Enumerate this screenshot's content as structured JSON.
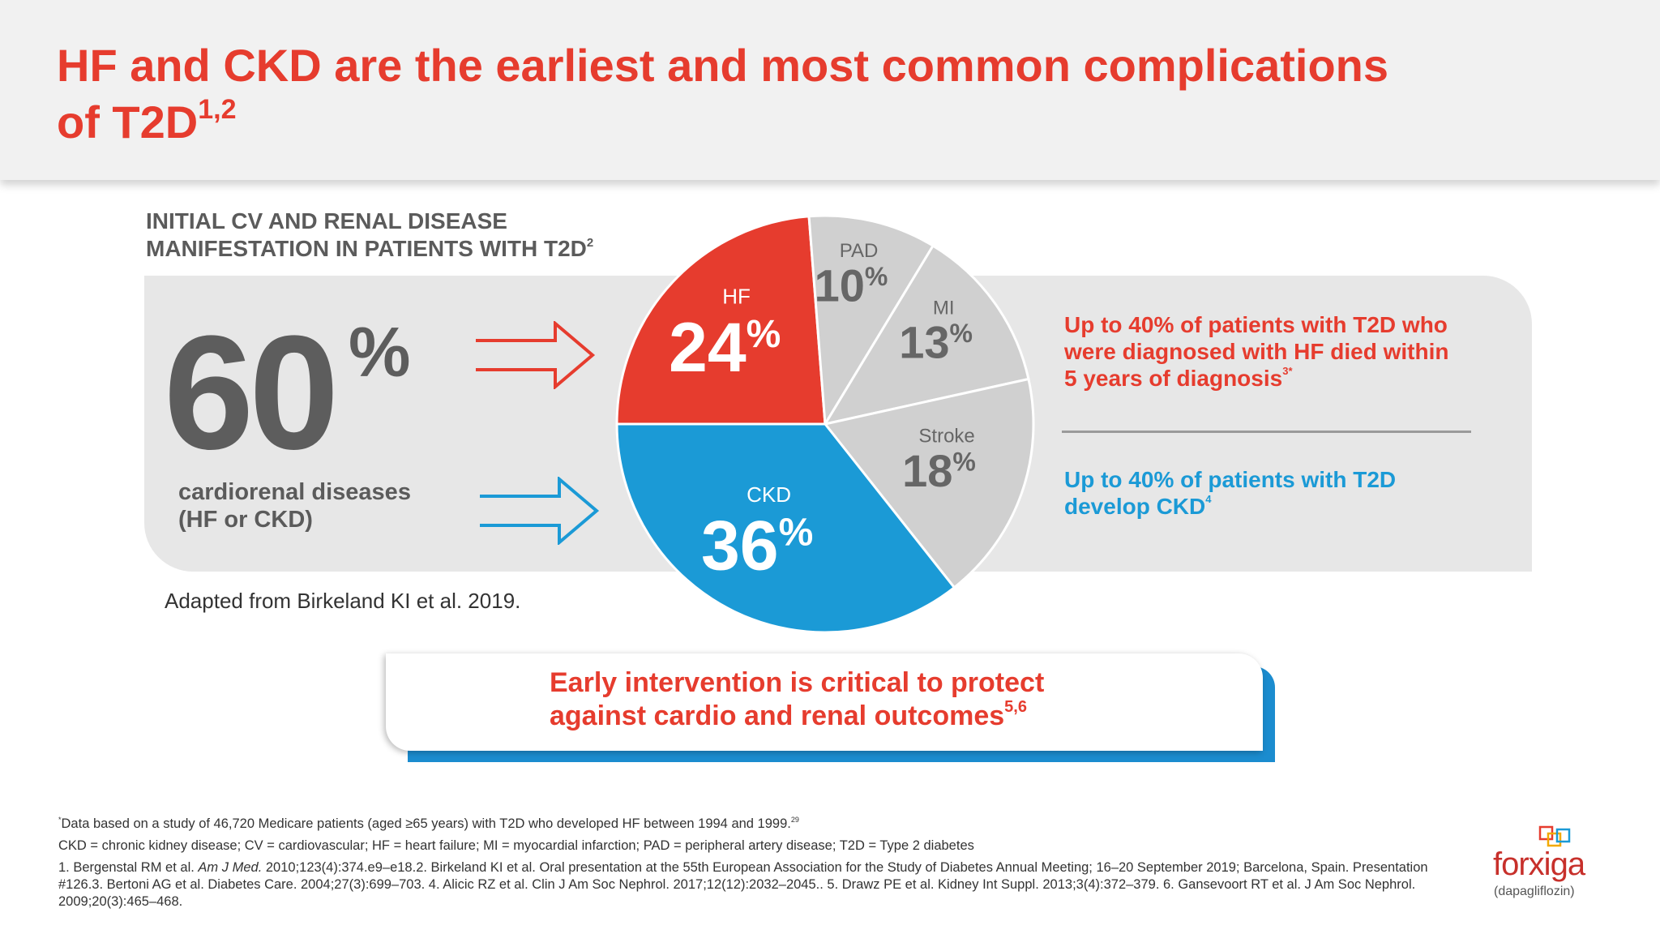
{
  "header": {
    "title_line1": "HF and CKD are the earliest and most common complications",
    "title_line2": "of T2D",
    "title_sup": "1,2"
  },
  "left": {
    "subtitle_line1": "INITIAL CV AND RENAL DISEASE",
    "subtitle_line2": "MANIFESTATION IN PATIENTS WITH T2D",
    "subtitle_sup": "2",
    "big_value": "60",
    "big_unit": "%",
    "label_line1": "cardiorenal diseases",
    "label_line2": "(HF or CKD)",
    "adapted": "Adapted from Birkeland KI et al. 2019."
  },
  "chart_data": {
    "type": "pie",
    "title": "Initial CV and renal disease manifestation in patients with T2D",
    "unit": "%",
    "slices": [
      {
        "label": "HF",
        "value": 24,
        "color": "#e63c2e"
      },
      {
        "label": "PAD",
        "value": 10,
        "color": "#d0d0d0"
      },
      {
        "label": "MI",
        "value": 13,
        "color": "#d0d0d0"
      },
      {
        "label": "Stroke",
        "value": 18,
        "color": "#d0d0d0"
      },
      {
        "label": "CKD",
        "value": 36,
        "color": "#1b9ad6"
      }
    ]
  },
  "right": {
    "hf_line1": "Up to 40% of patients with T2D who",
    "hf_line2": "were diagnosed with HF died within",
    "hf_line3": "5 years of diagnosis",
    "hf_sup": "3*",
    "ckd_line1": "Up to 40% of patients with T2D",
    "ckd_line2": "develop CKD",
    "ckd_sup": "4"
  },
  "callout": {
    "line1": "Early intervention is critical to protect",
    "line2": "against cardio and renal outcomes",
    "sup": "5,6"
  },
  "footnotes": {
    "note_star": "*",
    "note1": "Data based on a study of 46,720 Medicare patients (aged ≥65 years) with T2D who developed HF between 1994 and 1999.",
    "note1_sup": "29",
    "abbrev": "CKD = chronic kidney disease; CV = cardiovascular; HF = heart failure; MI = myocardial infarction; PAD = peripheral artery disease; T2D = Type 2 diabetes",
    "ref_a": "1. Bergenstal RM et al. ",
    "ref_journal": "Am J Med.",
    "ref_b": " 2010;123(4):374.e9–e18.2. Birkeland KI et al. Oral presentation at the 55th European Association for the Study of Diabetes Annual Meeting; 16–20 September 2019; Barcelona, Spain. Presentation #126.3. Bertoni AG et al. Diabetes Care. 2004;27(3):699–703. 4. Alicic RZ et al. Clin J Am Soc Nephrol. 2017;12(12):2032–2045.. 5. Drawz PE et al. Kidney Int Suppl. 2013;3(4):372–379. 6. Gansevoort RT et al. J Am Soc Nephrol. 2009;20(3):465–468."
  },
  "logo": {
    "brand": "forxiga",
    "generic": "(dapagliflozin)"
  },
  "colors": {
    "red": "#e63c2e",
    "blue": "#1b9ad6",
    "gray_slice": "#d0d0d0",
    "panel": "#e7e7e7"
  }
}
